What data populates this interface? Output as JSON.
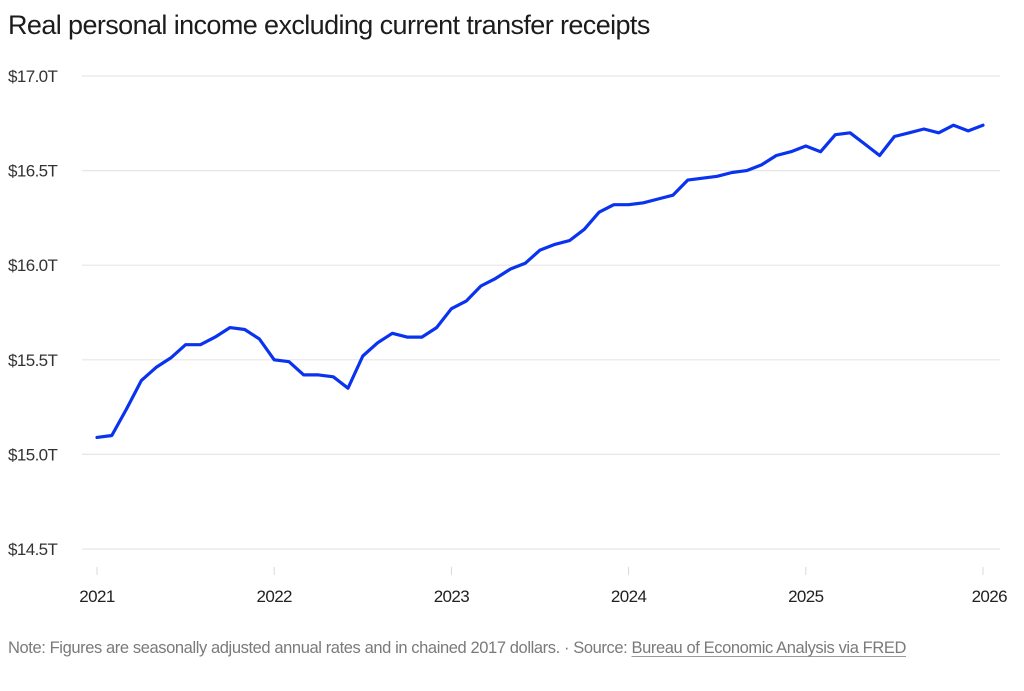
{
  "chart_data": {
    "type": "line",
    "title": "Real personal income excluding current transfer receipts",
    "xlabel": "",
    "ylabel": "",
    "ylim": [
      14.5,
      17.0
    ],
    "xlim": [
      "2021-01",
      "2026-01"
    ],
    "grid": true,
    "legend": "none",
    "y_ticks": [
      {
        "value": 17.0,
        "label": "$17.0T"
      },
      {
        "value": 16.5,
        "label": "$16.5T"
      },
      {
        "value": 16.0,
        "label": "$16.0T"
      },
      {
        "value": 15.5,
        "label": "$15.5T"
      },
      {
        "value": 15.0,
        "label": "$15.0T"
      },
      {
        "value": 14.5,
        "label": "$14.5T"
      }
    ],
    "x_ticks": [
      {
        "value": "2021-01",
        "label": "2021"
      },
      {
        "value": "2022-01",
        "label": "2022"
      },
      {
        "value": "2023-01",
        "label": "2023"
      },
      {
        "value": "2024-01",
        "label": "2024"
      },
      {
        "value": "2025-01",
        "label": "2025"
      },
      {
        "value": "2026-01",
        "label": "2026"
      }
    ],
    "series": [
      {
        "name": "Real personal income excluding current transfer receipts",
        "unit": "trillions of chained 2017 dollars, SAAR",
        "color": "#0a33f0",
        "x": [
          "2021-01",
          "2021-02",
          "2021-03",
          "2021-04",
          "2021-05",
          "2021-06",
          "2021-07",
          "2021-08",
          "2021-09",
          "2021-10",
          "2021-11",
          "2021-12",
          "2022-01",
          "2022-02",
          "2022-03",
          "2022-04",
          "2022-05",
          "2022-06",
          "2022-07",
          "2022-08",
          "2022-09",
          "2022-10",
          "2022-11",
          "2022-12",
          "2023-01",
          "2023-02",
          "2023-03",
          "2023-04",
          "2023-05",
          "2023-06",
          "2023-07",
          "2023-08",
          "2023-09",
          "2023-10",
          "2023-11",
          "2023-12",
          "2024-01",
          "2024-02",
          "2024-03",
          "2024-04",
          "2024-05",
          "2024-06",
          "2024-07",
          "2024-08",
          "2024-09",
          "2024-10",
          "2024-11",
          "2024-12",
          "2025-01",
          "2025-02",
          "2025-03",
          "2025-04",
          "2025-05",
          "2025-06",
          "2025-07",
          "2025-08",
          "2025-09",
          "2025-10",
          "2025-11",
          "2025-12",
          "2026-01"
        ],
        "values": [
          15.09,
          15.1,
          15.24,
          15.39,
          15.46,
          15.51,
          15.58,
          15.58,
          15.62,
          15.67,
          15.66,
          15.61,
          15.5,
          15.49,
          15.42,
          15.42,
          15.41,
          15.35,
          15.52,
          15.59,
          15.64,
          15.62,
          15.62,
          15.67,
          15.77,
          15.81,
          15.89,
          15.93,
          15.98,
          16.01,
          16.08,
          16.11,
          16.13,
          16.19,
          16.28,
          16.32,
          16.32,
          16.33,
          16.35,
          16.37,
          16.45,
          16.46,
          16.47,
          16.49,
          16.5,
          16.53,
          16.58,
          16.6,
          16.63,
          16.6,
          16.69,
          16.7,
          16.64,
          16.58,
          16.68,
          16.7,
          16.72,
          16.7,
          16.74,
          16.71,
          16.74
        ]
      }
    ]
  },
  "colors": {
    "line": "#0a33f0",
    "gridline": "#e6e6e6",
    "tick_mark": "#d9d9d9"
  },
  "footer": {
    "note_text": "Note: Figures are seasonally adjusted annual rates and in chained 2017 dollars. · Source: ",
    "source_link_text": "Bureau of Economic Analysis via FRED"
  }
}
